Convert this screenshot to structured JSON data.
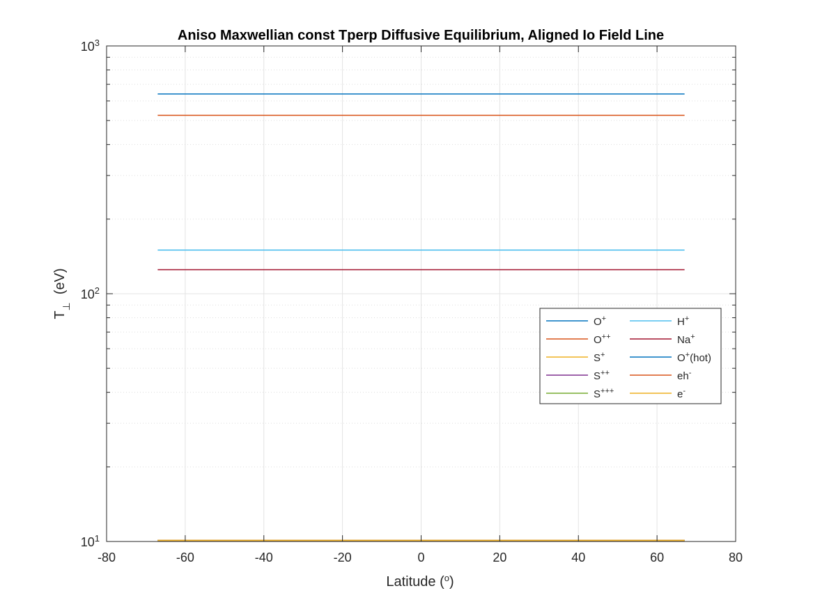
{
  "chart_data": {
    "type": "line",
    "title": "Aniso Maxwellian const Tperp Diffusive Equilibrium, Aligned Io Field Line",
    "xlabel": {
      "text": "Latitude (",
      "sup": "o",
      "suffix": ")"
    },
    "ylabel": {
      "main": "T",
      "sub": "⊥",
      "suffix": "  (eV)"
    },
    "xlim": [
      -80,
      80
    ],
    "ylim": [
      10,
      1000
    ],
    "yscale": "log",
    "grid": true,
    "legend_position": "right, middle",
    "x_ticks": [
      {
        "value": -80,
        "label": "-80"
      },
      {
        "value": -60,
        "label": "-60"
      },
      {
        "value": -40,
        "label": "-40"
      },
      {
        "value": -20,
        "label": "-20"
      },
      {
        "value": 0,
        "label": "0"
      },
      {
        "value": 20,
        "label": "20"
      },
      {
        "value": 40,
        "label": "40"
      },
      {
        "value": 60,
        "label": "60"
      },
      {
        "value": 80,
        "label": "80"
      }
    ],
    "y_ticks": [
      {
        "value": 10,
        "base": "10",
        "exp": "1"
      },
      {
        "value": 100,
        "base": "10",
        "exp": "2"
      },
      {
        "value": 1000,
        "base": "10",
        "exp": "3"
      }
    ],
    "x": [
      -67,
      67
    ],
    "series": [
      {
        "name": "O",
        "sup": "+",
        "color": "#0072BD",
        "values": [
          640,
          640
        ]
      },
      {
        "name": "O",
        "sup": "++",
        "color": "#D95319",
        "values": [
          525,
          525
        ]
      },
      {
        "name": "S",
        "sup": "+",
        "color": "#EDB120",
        "values": [
          10.1,
          10.1
        ]
      },
      {
        "name": "S",
        "sup": "++",
        "color": "#7E2F8E",
        "values": [
          10.1,
          10.1
        ]
      },
      {
        "name": "S",
        "sup": "+++",
        "color": "#77AC30",
        "values": [
          10.1,
          10.1
        ]
      },
      {
        "name": "H",
        "sup": "+",
        "color": "#4DBEEE",
        "values": [
          150,
          150
        ]
      },
      {
        "name": "Na",
        "sup": "+",
        "color": "#A2142F",
        "values": [
          125,
          125
        ]
      },
      {
        "name": "O",
        "sup": "+",
        "suffix": "(hot)",
        "color": "#0072BD",
        "values": [
          10.1,
          10.1
        ]
      },
      {
        "name": "eh",
        "sup": "-",
        "color": "#D95319",
        "values": [
          10.1,
          10.1
        ]
      },
      {
        "name": "e",
        "sup": "-",
        "color": "#EDB120",
        "values": [
          10.1,
          10.1
        ]
      }
    ]
  }
}
